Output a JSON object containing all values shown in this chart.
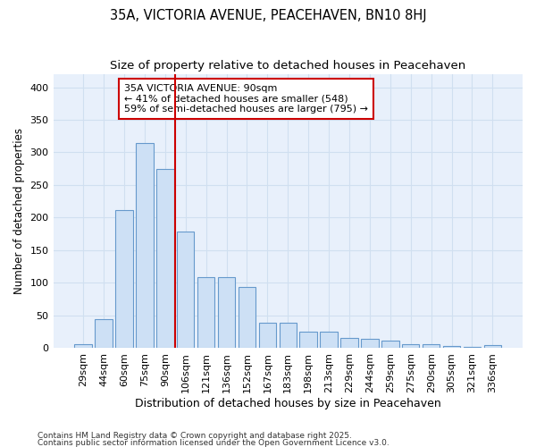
{
  "title": "35A, VICTORIA AVENUE, PEACEHAVEN, BN10 8HJ",
  "subtitle": "Size of property relative to detached houses in Peacehaven",
  "xlabel": "Distribution of detached houses by size in Peacehaven",
  "ylabel": "Number of detached properties",
  "categories": [
    "29sqm",
    "44sqm",
    "60sqm",
    "75sqm",
    "90sqm",
    "106sqm",
    "121sqm",
    "136sqm",
    "152sqm",
    "167sqm",
    "183sqm",
    "198sqm",
    "213sqm",
    "229sqm",
    "244sqm",
    "259sqm",
    "275sqm",
    "290sqm",
    "305sqm",
    "321sqm",
    "336sqm"
  ],
  "values": [
    5,
    44,
    212,
    315,
    275,
    178,
    108,
    108,
    93,
    38,
    38,
    25,
    24,
    15,
    13,
    11,
    5,
    5,
    3,
    2,
    4
  ],
  "bar_color": "#cde0f5",
  "bar_edge_color": "#6699cc",
  "vline_x": 4.5,
  "vline_color": "#cc0000",
  "annotation_text": "35A VICTORIA AVENUE: 90sqm\n← 41% of detached houses are smaller (548)\n59% of semi-detached houses are larger (795) →",
  "annotation_box_facecolor": "#ffffff",
  "annotation_box_edge": "#cc0000",
  "ylim": [
    0,
    420
  ],
  "yticks": [
    0,
    50,
    100,
    150,
    200,
    250,
    300,
    350,
    400
  ],
  "grid_color": "#d0dff0",
  "background_color": "#ffffff",
  "plot_bg_color": "#e8f0fb",
  "footnote1": "Contains HM Land Registry data © Crown copyright and database right 2025.",
  "footnote2": "Contains public sector information licensed under the Open Government Licence v3.0.",
  "title_fontsize": 10.5,
  "subtitle_fontsize": 9.5,
  "xlabel_fontsize": 9,
  "ylabel_fontsize": 8.5,
  "tick_fontsize": 8,
  "annotation_fontsize": 8,
  "footnote_fontsize": 6.5
}
